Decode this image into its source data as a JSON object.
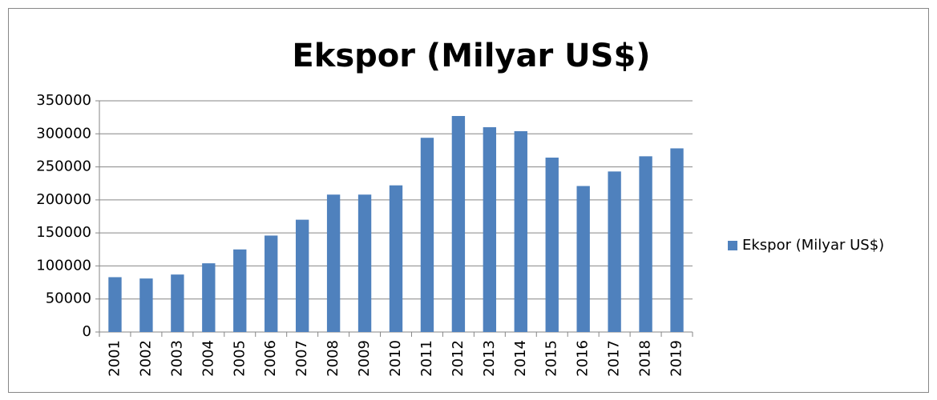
{
  "chart_data": {
    "type": "bar",
    "title": "Ekspor (Milyar US$)",
    "categories": [
      "2001",
      "2002",
      "2003",
      "2004",
      "2005",
      "2006",
      "2007",
      "2008",
      "2009",
      "2010",
      "2011",
      "2012",
      "2013",
      "2014",
      "2015",
      "2016",
      "2017",
      "2018",
      "2019"
    ],
    "series": [
      {
        "name": "Ekspor (Milyar US$)",
        "color": "#4f81bd",
        "values": [
          83000,
          81000,
          87000,
          104000,
          125000,
          146000,
          170000,
          208000,
          208000,
          222000,
          294000,
          327000,
          310000,
          304000,
          264000,
          221000,
          243000,
          266000,
          278000
        ]
      }
    ],
    "ylim": [
      0,
      350000
    ],
    "yticks": [
      0,
      50000,
      100000,
      150000,
      200000,
      250000,
      300000,
      350000
    ],
    "grid": true,
    "legend": "right"
  }
}
